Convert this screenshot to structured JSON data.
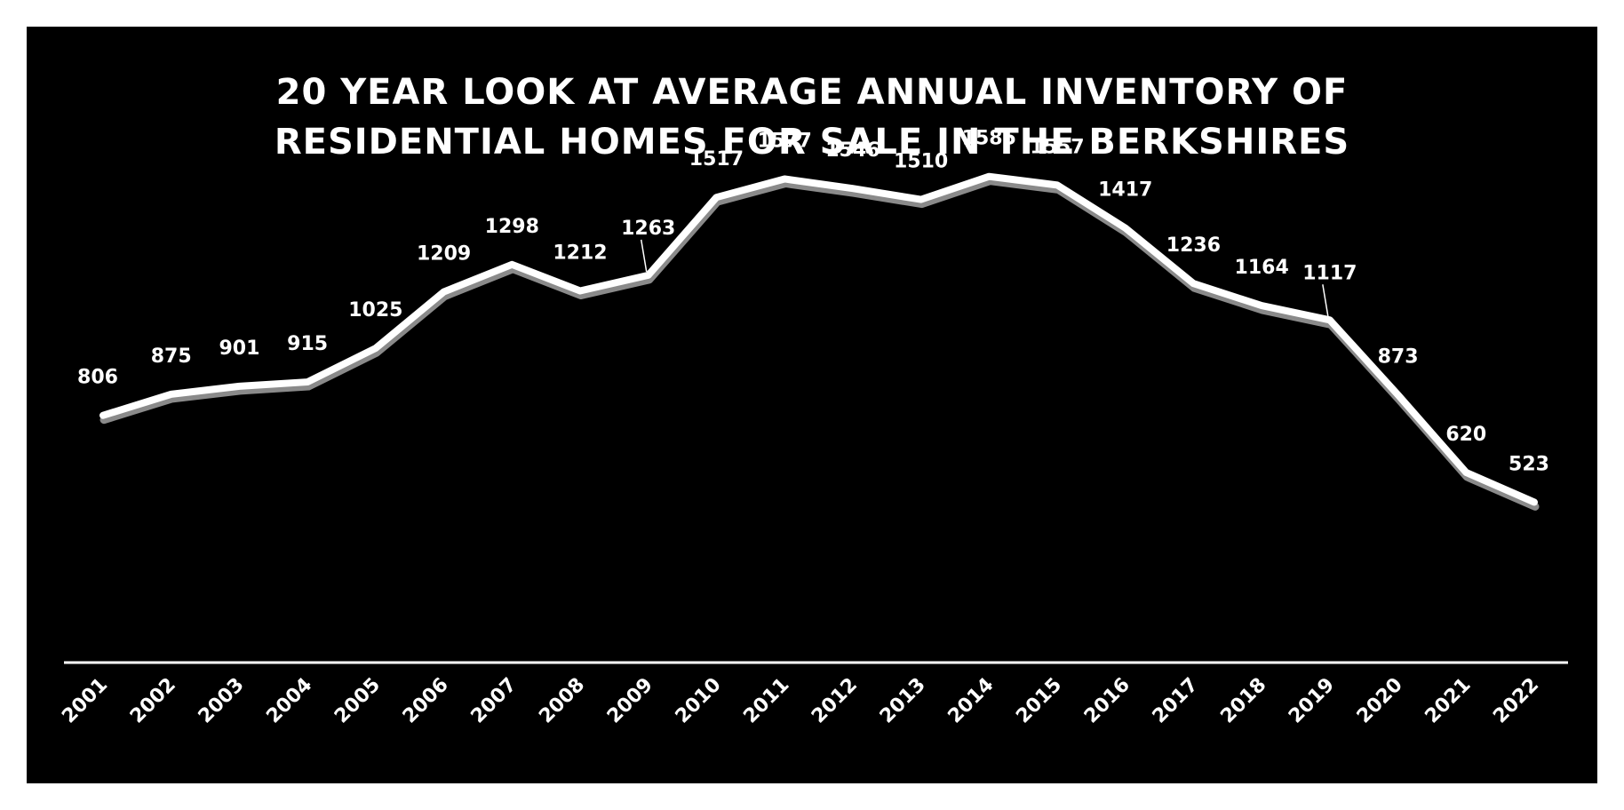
{
  "chart_data": {
    "type": "line",
    "title_lines": [
      "20 YEAR LOOK AT AVERAGE ANNUAL INVENTORY OF",
      "RESIDENTIAL HOMES FOR SALE IN THE BERKSHIRES"
    ],
    "xlabel": "",
    "ylabel": "",
    "categories": [
      "2001",
      "2002",
      "2003",
      "2004",
      "2005",
      "2006",
      "2007",
      "2008",
      "2009",
      "2010",
      "2011",
      "2012",
      "2013",
      "2014",
      "2015",
      "2016",
      "2017",
      "2018",
      "2019",
      "2020",
      "2021",
      "2022"
    ],
    "values": [
      806,
      875,
      901,
      915,
      1025,
      1209,
      1298,
      1212,
      1263,
      1517,
      1577,
      1546,
      1510,
      1585,
      1557,
      1417,
      1236,
      1164,
      1117,
      873,
      620,
      523
    ],
    "ylim": [
      0,
      1700
    ],
    "grid": false,
    "drop_lines": true,
    "legend": "none",
    "colors": {
      "background": "#000000",
      "line": "#ffffff",
      "line_shadow": "#8a8a8a",
      "text": "#ffffff"
    }
  }
}
